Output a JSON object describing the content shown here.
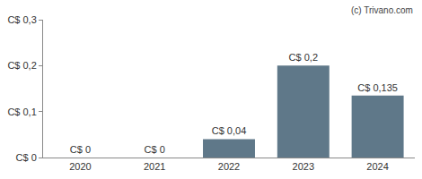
{
  "chart_data": {
    "type": "bar",
    "categories": [
      "2020",
      "2021",
      "2022",
      "2023",
      "2024"
    ],
    "values": [
      0,
      0,
      0.04,
      0.2,
      0.135
    ],
    "value_labels": [
      "C$ 0",
      "C$ 0",
      "C$ 0,04",
      "C$ 0,2",
      "C$ 0,135"
    ],
    "data_labels": true,
    "color": "#5f7889",
    "ylim": [
      0,
      0.3
    ],
    "yticks": [
      {
        "value": 0,
        "label": "C$ 0"
      },
      {
        "value": 0.1,
        "label": "C$ 0,1"
      },
      {
        "value": 0.2,
        "label": "C$ 0,2"
      },
      {
        "value": 0.3,
        "label": "C$ 0,3"
      }
    ],
    "grid": false,
    "annotations": [
      "(c) Trivano.com"
    ]
  }
}
